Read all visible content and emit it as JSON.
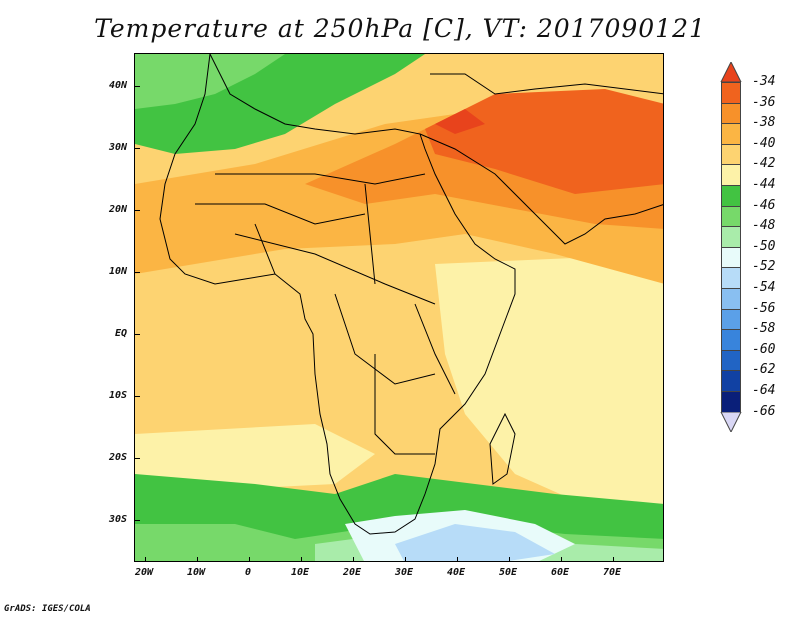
{
  "title": "Temperature at 250hPa [C], VT: 2017090121",
  "credit": "GrADS: IGES/COLA",
  "map": {
    "lat_labels": [
      "40N",
      "30N",
      "20N",
      "10N",
      "EQ",
      "10S",
      "20S",
      "30S"
    ],
    "lon_labels": [
      "20W",
      "10W",
      "0",
      "10E",
      "20E",
      "30E",
      "40E",
      "50E",
      "60E",
      "70E"
    ]
  },
  "colorbar": {
    "labels": [
      "-34",
      "-36",
      "-38",
      "-40",
      "-42",
      "-44",
      "-46",
      "-48",
      "-50",
      "-52",
      "-54",
      "-56",
      "-58",
      "-60",
      "-62",
      "-64",
      "-66"
    ],
    "colors": [
      "#e8431c",
      "#f0631e",
      "#f7912a",
      "#fbb544",
      "#fdd371",
      "#fdf2a8",
      "#42c342",
      "#77d96a",
      "#a9ecaa",
      "#e8fbfa",
      "#b7dcf8",
      "#89bff1",
      "#5ba0e8",
      "#3884dc",
      "#2164c4",
      "#1141a3",
      "#0a1f79"
    ],
    "under_color": "#d9d7f5"
  }
}
